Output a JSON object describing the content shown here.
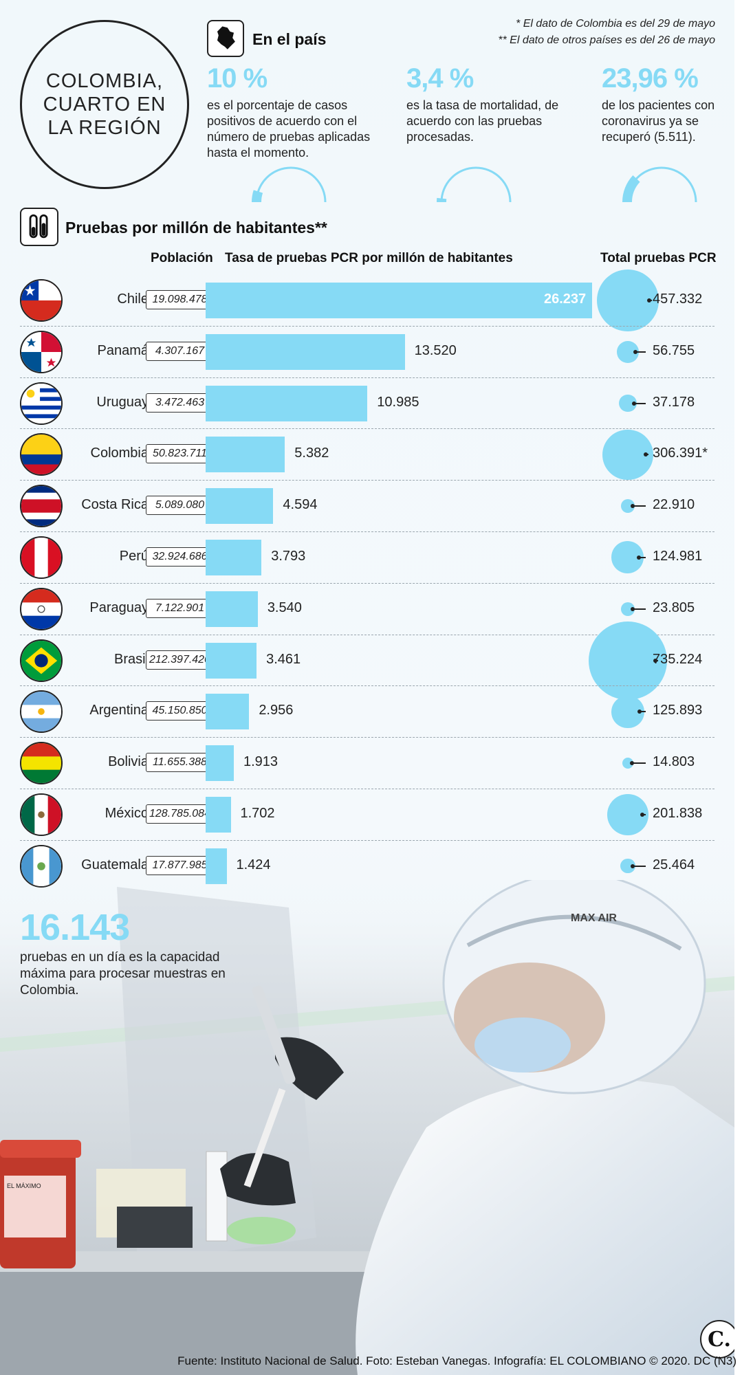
{
  "header": {
    "title": "COLOMBIA, CUARTO EN LA REGIÓN",
    "section_country": "En el país",
    "note1": "* El dato de Colombia es del 29 de mayo",
    "note2": "** El dato de otros países es del 26 de mayo"
  },
  "stats": [
    {
      "value": "10 %",
      "text": "es el porcentaje de casos positivos de acuerdo con el número de pruebas aplicadas hasta el momento.",
      "fraction": 0.1
    },
    {
      "value": "3,4 %",
      "text": "es la tasa de mortalidad, de acuerdo con las pruebas procesadas.",
      "fraction": 0.034
    },
    {
      "value": "23,96 %",
      "text": "de los pacientes con coronavirus ya se recuperó (5.511).",
      "fraction": 0.2396
    }
  ],
  "tests_section": {
    "title": "Pruebas por millón de habitantes**",
    "col_population": "Población",
    "col_rate": "Tasa de pruebas PCR por millón de habitantes",
    "col_total": "Total pruebas PCR"
  },
  "chart_data": {
    "type": "bar",
    "title": "Pruebas por millón de habitantes**",
    "categories": [
      "Chile",
      "Panamá",
      "Uruguay",
      "Colombia",
      "Costa Rica",
      "Perú",
      "Paraguay",
      "Brasil",
      "Argentina",
      "Bolivia",
      "México",
      "Guatemala"
    ],
    "population": [
      "19.098.478",
      "4.307.167",
      "3.472.463",
      "50.823.711",
      "5.089.080",
      "32.924.686",
      "7.122.901",
      "212.397.420",
      "45.150.850",
      "11.655.388",
      "128.785.084",
      "17.877.985"
    ],
    "rate_labels": [
      "26.237",
      "13.520",
      "10.985",
      "5.382",
      "4.594",
      "3.793",
      "3.540",
      "3.461",
      "2.956",
      "1.913",
      "1.702",
      "1.424"
    ],
    "series": [
      {
        "name": "Tasa de pruebas PCR por millón de habitantes",
        "values": [
          26237,
          13520,
          10985,
          5382,
          4594,
          3793,
          3540,
          3461,
          2956,
          1913,
          1702,
          1424
        ]
      },
      {
        "name": "Total pruebas PCR",
        "values": [
          457332,
          56755,
          37178,
          306391,
          22910,
          124981,
          23805,
          735224,
          125893,
          14803,
          201838,
          25464
        ]
      }
    ],
    "total_labels": [
      "457.332",
      "56.755",
      "37.178",
      "306.391*",
      "22.910",
      "124.981",
      "23.805",
      "735.224",
      "125.893",
      "14.803",
      "201.838",
      "25.464"
    ]
  },
  "flags": [
    "chile",
    "panama",
    "uruguay",
    "colombia",
    "costa-rica",
    "peru",
    "paraguay",
    "brasil",
    "argentina",
    "bolivia",
    "mexico",
    "guatemala"
  ],
  "capacity": {
    "value": "16.143",
    "text": "pruebas en un día es la capacidad máxima para procesar muestras en Colombia."
  },
  "photo_text": {
    "helmet_brand": "MAX AIR",
    "bin_label": "EL MÁXIMO"
  },
  "logo": "C.",
  "source": "Fuente: Instituto Nacional de Salud. Foto: Esteban Vanegas. Infografía: EL COLOMBIANO © 2020. DC (N3)",
  "colors": {
    "accent": "#86daf5",
    "text": "#222222"
  }
}
